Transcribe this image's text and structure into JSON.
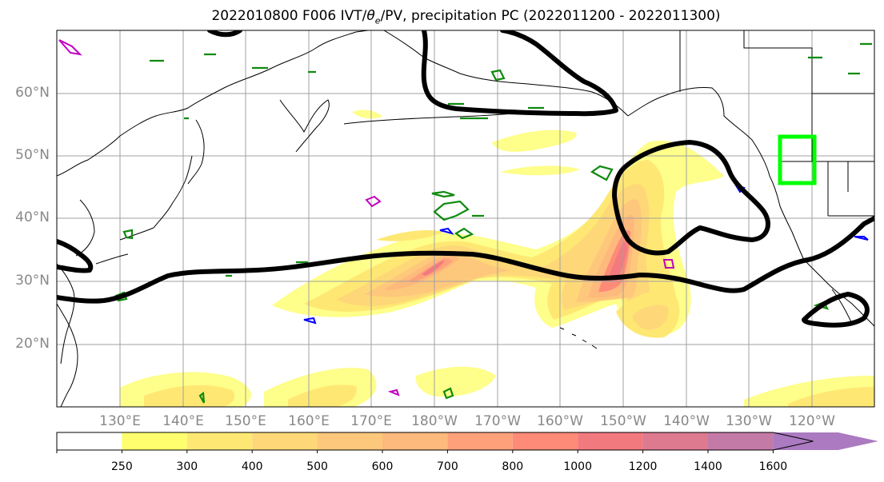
{
  "title_main": "2022010800 F006 IVT/",
  "title_theta": "θ",
  "title_theta_sub": "e",
  "title_rest": "/PV, precipitation PC (2022011200 - 2022011300)",
  "lat_labels": [
    "60°N",
    "50°N",
    "40°N",
    "30°N",
    "20°N"
  ],
  "lon_labels": [
    "130°E",
    "140°E",
    "150°E",
    "160°E",
    "170°E",
    "180°W",
    "170°W",
    "160°W",
    "150°W",
    "140°W",
    "130°W",
    "120°W"
  ],
  "colorbar": {
    "ticks": [
      "250",
      "300",
      "400",
      "500",
      "600",
      "700",
      "800",
      "1000",
      "1200",
      "1400",
      "1600"
    ],
    "colors": [
      "#fefe6e",
      "#fee873",
      "#fed878",
      "#fec87c",
      "#feb97c",
      "#fea17a",
      "#fe8a78",
      "#f27a7f",
      "#dd7a8f",
      "#c47aa6",
      "#ab7ac0"
    ],
    "extend": "max"
  },
  "colors": {
    "geopotential_contour": "#000000",
    "theta_e_contour": "#0f8a0f",
    "pv_contour_blue": "#0000ff",
    "pv_contour_magenta": "#c000c0",
    "target_box": "#00ff00",
    "graticule": "#a0a0a0",
    "label": "#888888"
  }
}
